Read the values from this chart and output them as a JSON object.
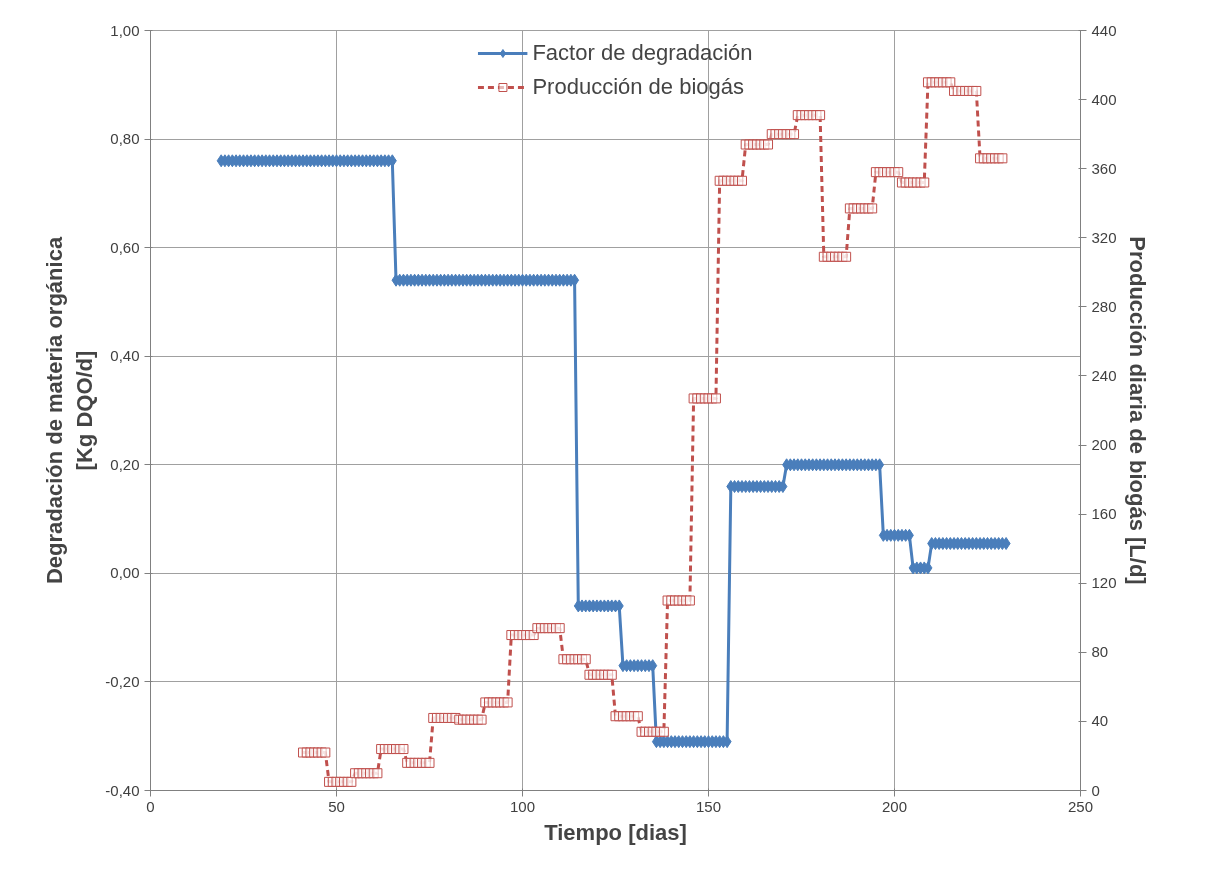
{
  "chart_data": {
    "type": "line",
    "xlabel": "Tiempo [dias]",
    "ylabel": "Degradación de materia orgánica\n[Kg DQO/d]",
    "y2label": "Producción diaria de biogás [L/d]",
    "xlim": [
      0,
      250
    ],
    "xticks": [
      0,
      50,
      100,
      150,
      200,
      250
    ],
    "ylim": [
      -0.4,
      1.0
    ],
    "yticks": [
      {
        "value": -0.4,
        "label": "-0,40"
      },
      {
        "value": -0.2,
        "label": "-0,20"
      },
      {
        "value": 0,
        "label": "0,00"
      },
      {
        "value": 0.2,
        "label": "0,20"
      },
      {
        "value": 0.4,
        "label": "0,40"
      },
      {
        "value": 0.6,
        "label": "0,60"
      },
      {
        "value": 0.8,
        "label": "0,80"
      },
      {
        "value": 1.0,
        "label": "1,00"
      }
    ],
    "y2lim": [
      0,
      440
    ],
    "y2ticks": [
      0,
      40,
      80,
      120,
      160,
      200,
      240,
      280,
      320,
      360,
      400,
      440
    ],
    "grid": true,
    "legend": "top",
    "series": [
      {
        "name": "Factor de degradación",
        "color": "#4a7ebb",
        "marker": "diamond",
        "line_style": "solid",
        "x": [
          19,
          20,
          21,
          22,
          23,
          24,
          25,
          26,
          27,
          28,
          29,
          30,
          31,
          32,
          33,
          34,
          35,
          36,
          37,
          38,
          39,
          40,
          41,
          42,
          43,
          44,
          45,
          46,
          47,
          48,
          49,
          50,
          51,
          52,
          53,
          54,
          55,
          56,
          57,
          58,
          59,
          60,
          61,
          62,
          63,
          64,
          65,
          66,
          67,
          68,
          69,
          70,
          71,
          72,
          73,
          74,
          75,
          76,
          77,
          78,
          79,
          80,
          81,
          82,
          83,
          84,
          85,
          86,
          87,
          88,
          89,
          90,
          91,
          92,
          93,
          94,
          95,
          96,
          97,
          98,
          99,
          100,
          101,
          102,
          103,
          104,
          105,
          106,
          107,
          108,
          109,
          110,
          111,
          112,
          113,
          114,
          115,
          116,
          117,
          118,
          119,
          120,
          121,
          122,
          123,
          124,
          125,
          126,
          127,
          128,
          129,
          130,
          131,
          132,
          133,
          134,
          135,
          136,
          137,
          138,
          139,
          140,
          141,
          142,
          143,
          144,
          145,
          146,
          147,
          148,
          149,
          150,
          151,
          152,
          153,
          154,
          155,
          156,
          157,
          158,
          159,
          160,
          161,
          162,
          163,
          164,
          165,
          166,
          167,
          168,
          169,
          170,
          171,
          172,
          173,
          174,
          175,
          176,
          177,
          178,
          179,
          180,
          181,
          182,
          183,
          184,
          185,
          186,
          187,
          188,
          189,
          190,
          191,
          192,
          193,
          194,
          195,
          196,
          197,
          198,
          199,
          200,
          201,
          202,
          203,
          204,
          205,
          206,
          207,
          208,
          209,
          210,
          211,
          212,
          213,
          214,
          215,
          216,
          217,
          218,
          219,
          220,
          221,
          222,
          223,
          224,
          225,
          226,
          227,
          228,
          229,
          230
        ],
        "values": [
          0.76,
          0.76,
          0.76,
          0.76,
          0.76,
          0.76,
          0.76,
          0.76,
          0.76,
          0.76,
          0.76,
          0.76,
          0.76,
          0.76,
          0.76,
          0.76,
          0.76,
          0.76,
          0.76,
          0.76,
          0.76,
          0.76,
          0.76,
          0.76,
          0.76,
          0.76,
          0.76,
          0.76,
          0.76,
          0.76,
          0.76,
          0.76,
          0.76,
          0.76,
          0.76,
          0.76,
          0.76,
          0.76,
          0.76,
          0.76,
          0.76,
          0.76,
          0.76,
          0.76,
          0.76,
          0.76,
          0.76,
          0.54,
          0.54,
          0.54,
          0.54,
          0.54,
          0.54,
          0.54,
          0.54,
          0.54,
          0.54,
          0.54,
          0.54,
          0.54,
          0.54,
          0.54,
          0.54,
          0.54,
          0.54,
          0.54,
          0.54,
          0.54,
          0.54,
          0.54,
          0.54,
          0.54,
          0.54,
          0.54,
          0.54,
          0.54,
          0.54,
          0.54,
          0.54,
          0.54,
          0.54,
          0.54,
          0.54,
          0.54,
          0.54,
          0.54,
          0.54,
          0.54,
          0.54,
          0.54,
          0.54,
          0.54,
          0.54,
          0.54,
          0.54,
          0.54,
          -0.06,
          -0.06,
          -0.06,
          -0.06,
          -0.06,
          -0.06,
          -0.06,
          -0.06,
          -0.06,
          -0.06,
          -0.06,
          -0.06,
          -0.17,
          -0.17,
          -0.17,
          -0.17,
          -0.17,
          -0.17,
          -0.17,
          -0.17,
          -0.17,
          -0.31,
          -0.31,
          -0.31,
          -0.31,
          -0.31,
          -0.31,
          -0.31,
          -0.31,
          -0.31,
          -0.31,
          -0.31,
          -0.31,
          -0.31,
          -0.31,
          -0.31,
          -0.31,
          -0.31,
          -0.31,
          -0.31,
          -0.31,
          0.16,
          0.16,
          0.16,
          0.16,
          0.16,
          0.16,
          0.16,
          0.16,
          0.16,
          0.16,
          0.16,
          0.16,
          0.16,
          0.16,
          0.16,
          0.2,
          0.2,
          0.2,
          0.2,
          0.2,
          0.2,
          0.2,
          0.2,
          0.2,
          0.2,
          0.2,
          0.2,
          0.2,
          0.2,
          0.2,
          0.2,
          0.2,
          0.2,
          0.2,
          0.2,
          0.2,
          0.2,
          0.2,
          0.2,
          0.2,
          0.2,
          0.07,
          0.07,
          0.07,
          0.07,
          0.07,
          0.07,
          0.07,
          0.07,
          0.01,
          0.01,
          0.01,
          0.01,
          0.01,
          0.055,
          0.055,
          0.055,
          0.055,
          0.055,
          0.055,
          0.055,
          0.055,
          0.055,
          0.055,
          0.055,
          0.055,
          0.055,
          0.055,
          0.055,
          0.055,
          0.055,
          0.055,
          0.055,
          0.055,
          0.055
        ]
      },
      {
        "name": "Producción de biogás",
        "color": "#c0504d",
        "marker": "square",
        "line_style": "dashed",
        "axis": "y2",
        "x": [
          41,
          42,
          43,
          44,
          45,
          46,
          47,
          48,
          49,
          50,
          51,
          52,
          53,
          54,
          55,
          56,
          57,
          58,
          59,
          60,
          61,
          62,
          63,
          64,
          65,
          66,
          67,
          68,
          69,
          70,
          71,
          72,
          73,
          74,
          75,
          76,
          77,
          78,
          79,
          80,
          81,
          82,
          83,
          84,
          85,
          86,
          87,
          88,
          89,
          90,
          91,
          92,
          93,
          94,
          95,
          96,
          97,
          98,
          99,
          100,
          101,
          102,
          103,
          104,
          105,
          106,
          107,
          108,
          109,
          110,
          111,
          112,
          113,
          114,
          115,
          116,
          117,
          118,
          119,
          120,
          121,
          122,
          123,
          124,
          125,
          126,
          127,
          128,
          129,
          130,
          131,
          132,
          133,
          134,
          135,
          136,
          137,
          138,
          139,
          140,
          141,
          142,
          143,
          144,
          145,
          146,
          147,
          148,
          149,
          150,
          151,
          152,
          153,
          154,
          155,
          156,
          157,
          158,
          159,
          160,
          161,
          162,
          163,
          164,
          165,
          166,
          167,
          168,
          169,
          170,
          171,
          172,
          173,
          174,
          175,
          176,
          177,
          178,
          179,
          180,
          181,
          182,
          183,
          184,
          185,
          186,
          187,
          188,
          189,
          190,
          191,
          192,
          193,
          194,
          195,
          196,
          197,
          198,
          199,
          200,
          201,
          202,
          203,
          204,
          205,
          206,
          207,
          208,
          209,
          210,
          211,
          212,
          213,
          214,
          215,
          216,
          217,
          218,
          219,
          220,
          221,
          222,
          223,
          224,
          225,
          226,
          227,
          228,
          229
        ],
        "values": [
          22,
          22,
          22,
          22,
          22,
          22,
          22,
          5,
          5,
          5,
          5,
          5,
          5,
          5,
          10,
          10,
          10,
          10,
          10,
          10,
          10,
          24,
          24,
          24,
          24,
          24,
          24,
          24,
          16,
          16,
          16,
          16,
          16,
          16,
          16,
          42,
          42,
          42,
          42,
          42,
          42,
          42,
          41,
          41,
          41,
          41,
          41,
          41,
          41,
          51,
          51,
          51,
          51,
          51,
          51,
          51,
          90,
          90,
          90,
          90,
          90,
          90,
          90,
          94,
          94,
          94,
          94,
          94,
          94,
          94,
          76,
          76,
          76,
          76,
          76,
          76,
          76,
          67,
          67,
          67,
          67,
          67,
          67,
          67,
          43,
          43,
          43,
          43,
          43,
          43,
          43,
          34,
          34,
          34,
          34,
          34,
          34,
          34,
          110,
          110,
          110,
          110,
          110,
          110,
          110,
          227,
          227,
          227,
          227,
          227,
          227,
          227,
          353,
          353,
          353,
          353,
          353,
          353,
          353,
          374,
          374,
          374,
          374,
          374,
          374,
          374,
          380,
          380,
          380,
          380,
          380,
          380,
          380,
          391,
          391,
          391,
          391,
          391,
          391,
          391,
          309,
          309,
          309,
          309,
          309,
          309,
          309,
          337,
          337,
          337,
          337,
          337,
          337,
          337,
          358,
          358,
          358,
          358,
          358,
          358,
          358,
          352,
          352,
          352,
          352,
          352,
          352,
          352,
          410,
          410,
          410,
          410,
          410,
          410,
          410,
          405,
          405,
          405,
          405,
          405,
          405,
          405,
          366,
          366,
          366,
          366,
          366,
          366,
          366
        ]
      }
    ]
  }
}
